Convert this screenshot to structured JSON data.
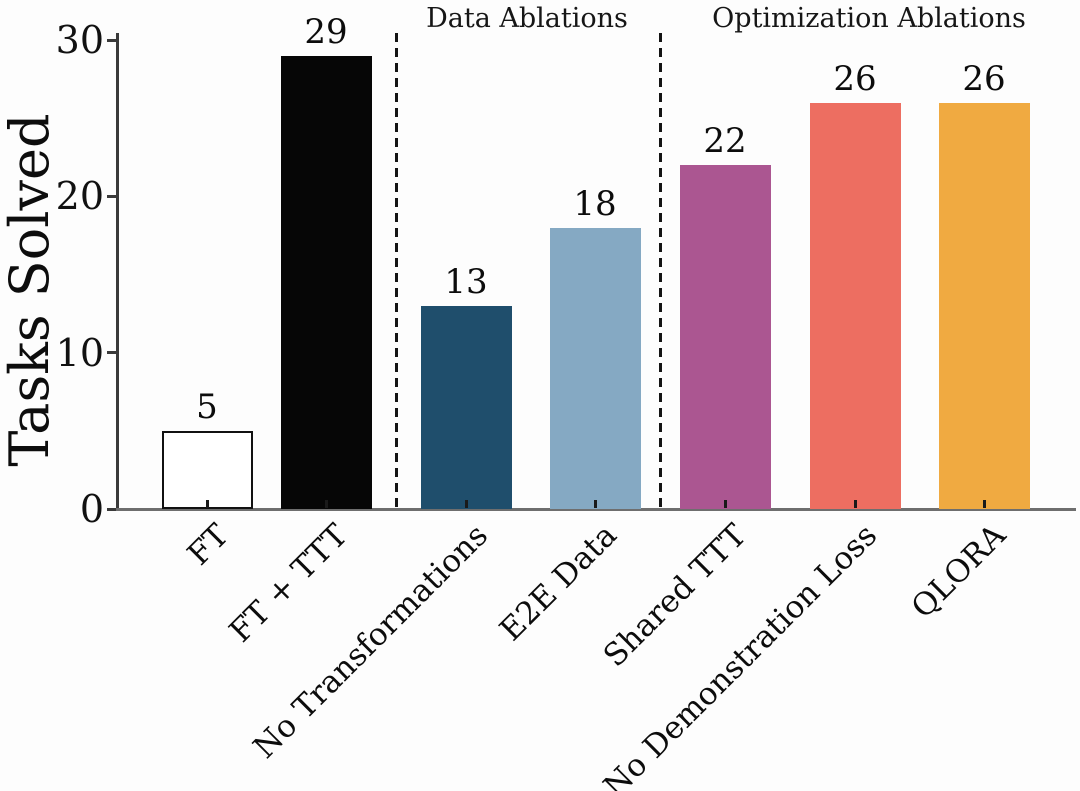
{
  "chart_data": {
    "type": "bar",
    "title": "",
    "ylabel": "Tasks Solved",
    "xlabel": "",
    "ylim": [
      0,
      30
    ],
    "yticks": [
      0,
      10,
      20,
      30
    ],
    "grid": false,
    "legend": "none",
    "categories": [
      "FT",
      "FT + TTT",
      "No Transformations",
      "E2E Data",
      "Shared TTT",
      "No Demonstration Loss",
      "QLORA"
    ],
    "values": [
      5,
      29,
      13,
      18,
      22,
      26,
      26
    ],
    "value_labels": [
      "5",
      "29",
      "13",
      "18",
      "22",
      "26",
      "26"
    ],
    "bar_colors": [
      "#ffffff",
      "#060606",
      "#1f4e6c",
      "#85a9c3",
      "#ab5691",
      "#ed6e61",
      "#f0aa41"
    ],
    "bar_edge_colors": [
      "#111111",
      "#060606",
      "#1f4e6c",
      "#85a9c3",
      "#ab5691",
      "#ed6e61",
      "#f0aa41"
    ],
    "sections": [
      {
        "label": "Data Ablations",
        "bars": [
          "No Transformations",
          "E2E Data"
        ]
      },
      {
        "label": "Optimization Ablations",
        "bars": [
          "Shared TTT",
          "No Demonstration Loss",
          "QLORA"
        ]
      }
    ]
  }
}
